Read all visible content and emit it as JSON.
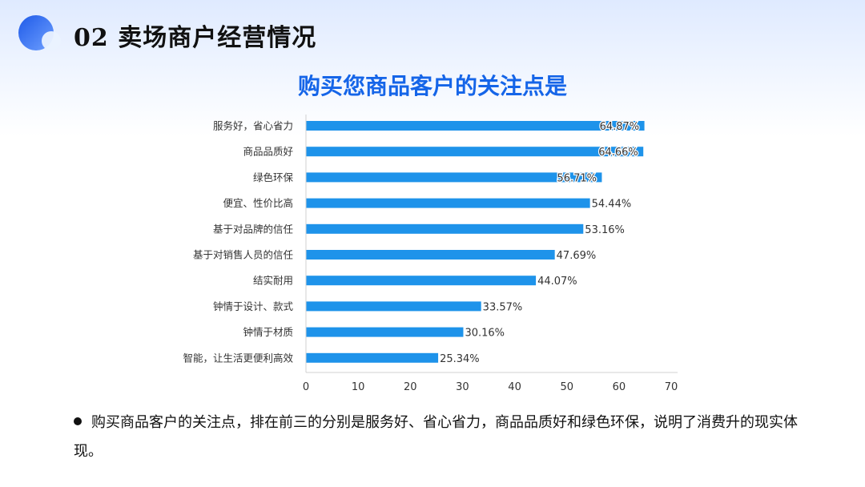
{
  "header": {
    "title": "02 卖场商户经营情况"
  },
  "colors": {
    "bar": "#1e93ea",
    "title": "#1565e8",
    "logo_dark": "#2563eb",
    "logo_light": "#c9dcff"
  },
  "chart_data": {
    "type": "bar",
    "orientation": "horizontal",
    "title": "购买您商品客户的关注点是",
    "categories": [
      "服务好，省心省力",
      "商品品质好",
      "绿色环保",
      "便宜、性价比高",
      "基于对品牌的信任",
      "基于对销售人员的信任",
      "结实耐用",
      "钟情于设计、款式",
      "钟情于材质",
      "智能，让生活更便利高效"
    ],
    "values": [
      64.87,
      64.66,
      56.71,
      54.44,
      53.16,
      47.69,
      44.07,
      33.57,
      30.16,
      25.34
    ],
    "value_labels": [
      "64.87%",
      "64.66%",
      "56.71%",
      "54.44%",
      "53.16%",
      "47.69%",
      "44.07%",
      "33.57%",
      "30.16%",
      "25.34%"
    ],
    "xlim": [
      0,
      70
    ],
    "xticks": [
      0,
      10,
      20,
      30,
      40,
      50,
      60,
      70
    ],
    "xlabel": "",
    "ylabel": "",
    "grid": false
  },
  "summary": {
    "text": "购买商品客户的关注点，排在前三的分别是服务好、省心省力，商品品质好和绿色环保，说明了消费升的现实体现。"
  }
}
